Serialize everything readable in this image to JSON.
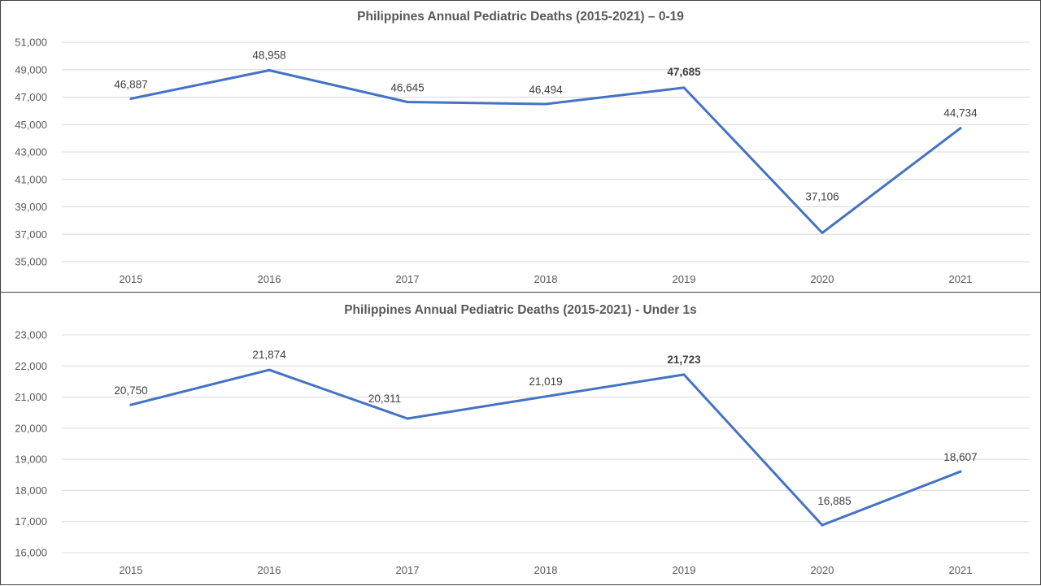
{
  "chart_data": [
    {
      "type": "line",
      "title": "Philippines Annual Pediatric Deaths (2015-2021) – 0-19",
      "categories": [
        "2015",
        "2016",
        "2017",
        "2018",
        "2019",
        "2020",
        "2021"
      ],
      "values": [
        46887,
        48958,
        46645,
        46494,
        47685,
        37106,
        44734
      ],
      "data_labels": [
        "46,887",
        "48,958",
        "46,645",
        "46,494",
        "47,685",
        "37,106",
        "44,734"
      ],
      "bold_label_index": 4,
      "ylim": [
        35000,
        51000
      ],
      "y_ticks": [
        35000,
        37000,
        39000,
        41000,
        43000,
        45000,
        47000,
        49000,
        51000
      ],
      "y_tick_labels": [
        "35,000",
        "37,000",
        "39,000",
        "41,000",
        "43,000",
        "45,000",
        "47,000",
        "49,000",
        "51,000"
      ],
      "grid": true,
      "legend": "none",
      "line_color": "#4472c4",
      "grid_color": "#d9d9d9"
    },
    {
      "type": "line",
      "title": "Philippines Annual Pediatric Deaths (2015-2021) - Under 1s",
      "categories": [
        "2015",
        "2016",
        "2017",
        "2018",
        "2019",
        "2020",
        "2021"
      ],
      "values": [
        20750,
        21874,
        20311,
        21019,
        21723,
        16885,
        18607
      ],
      "data_labels": [
        "20,750",
        "21,874",
        "20,311",
        "21,019",
        "21,723",
        "16,885",
        "18,607"
      ],
      "bold_label_index": 4,
      "ylim": [
        16000,
        23000
      ],
      "y_ticks": [
        16000,
        17000,
        18000,
        19000,
        20000,
        21000,
        22000,
        23000
      ],
      "y_tick_labels": [
        "16,000",
        "17,000",
        "18,000",
        "19,000",
        "20,000",
        "21,000",
        "22,000",
        "23,000"
      ],
      "grid": true,
      "legend": "none",
      "line_color": "#4472c4",
      "grid_color": "#d9d9d9"
    }
  ]
}
